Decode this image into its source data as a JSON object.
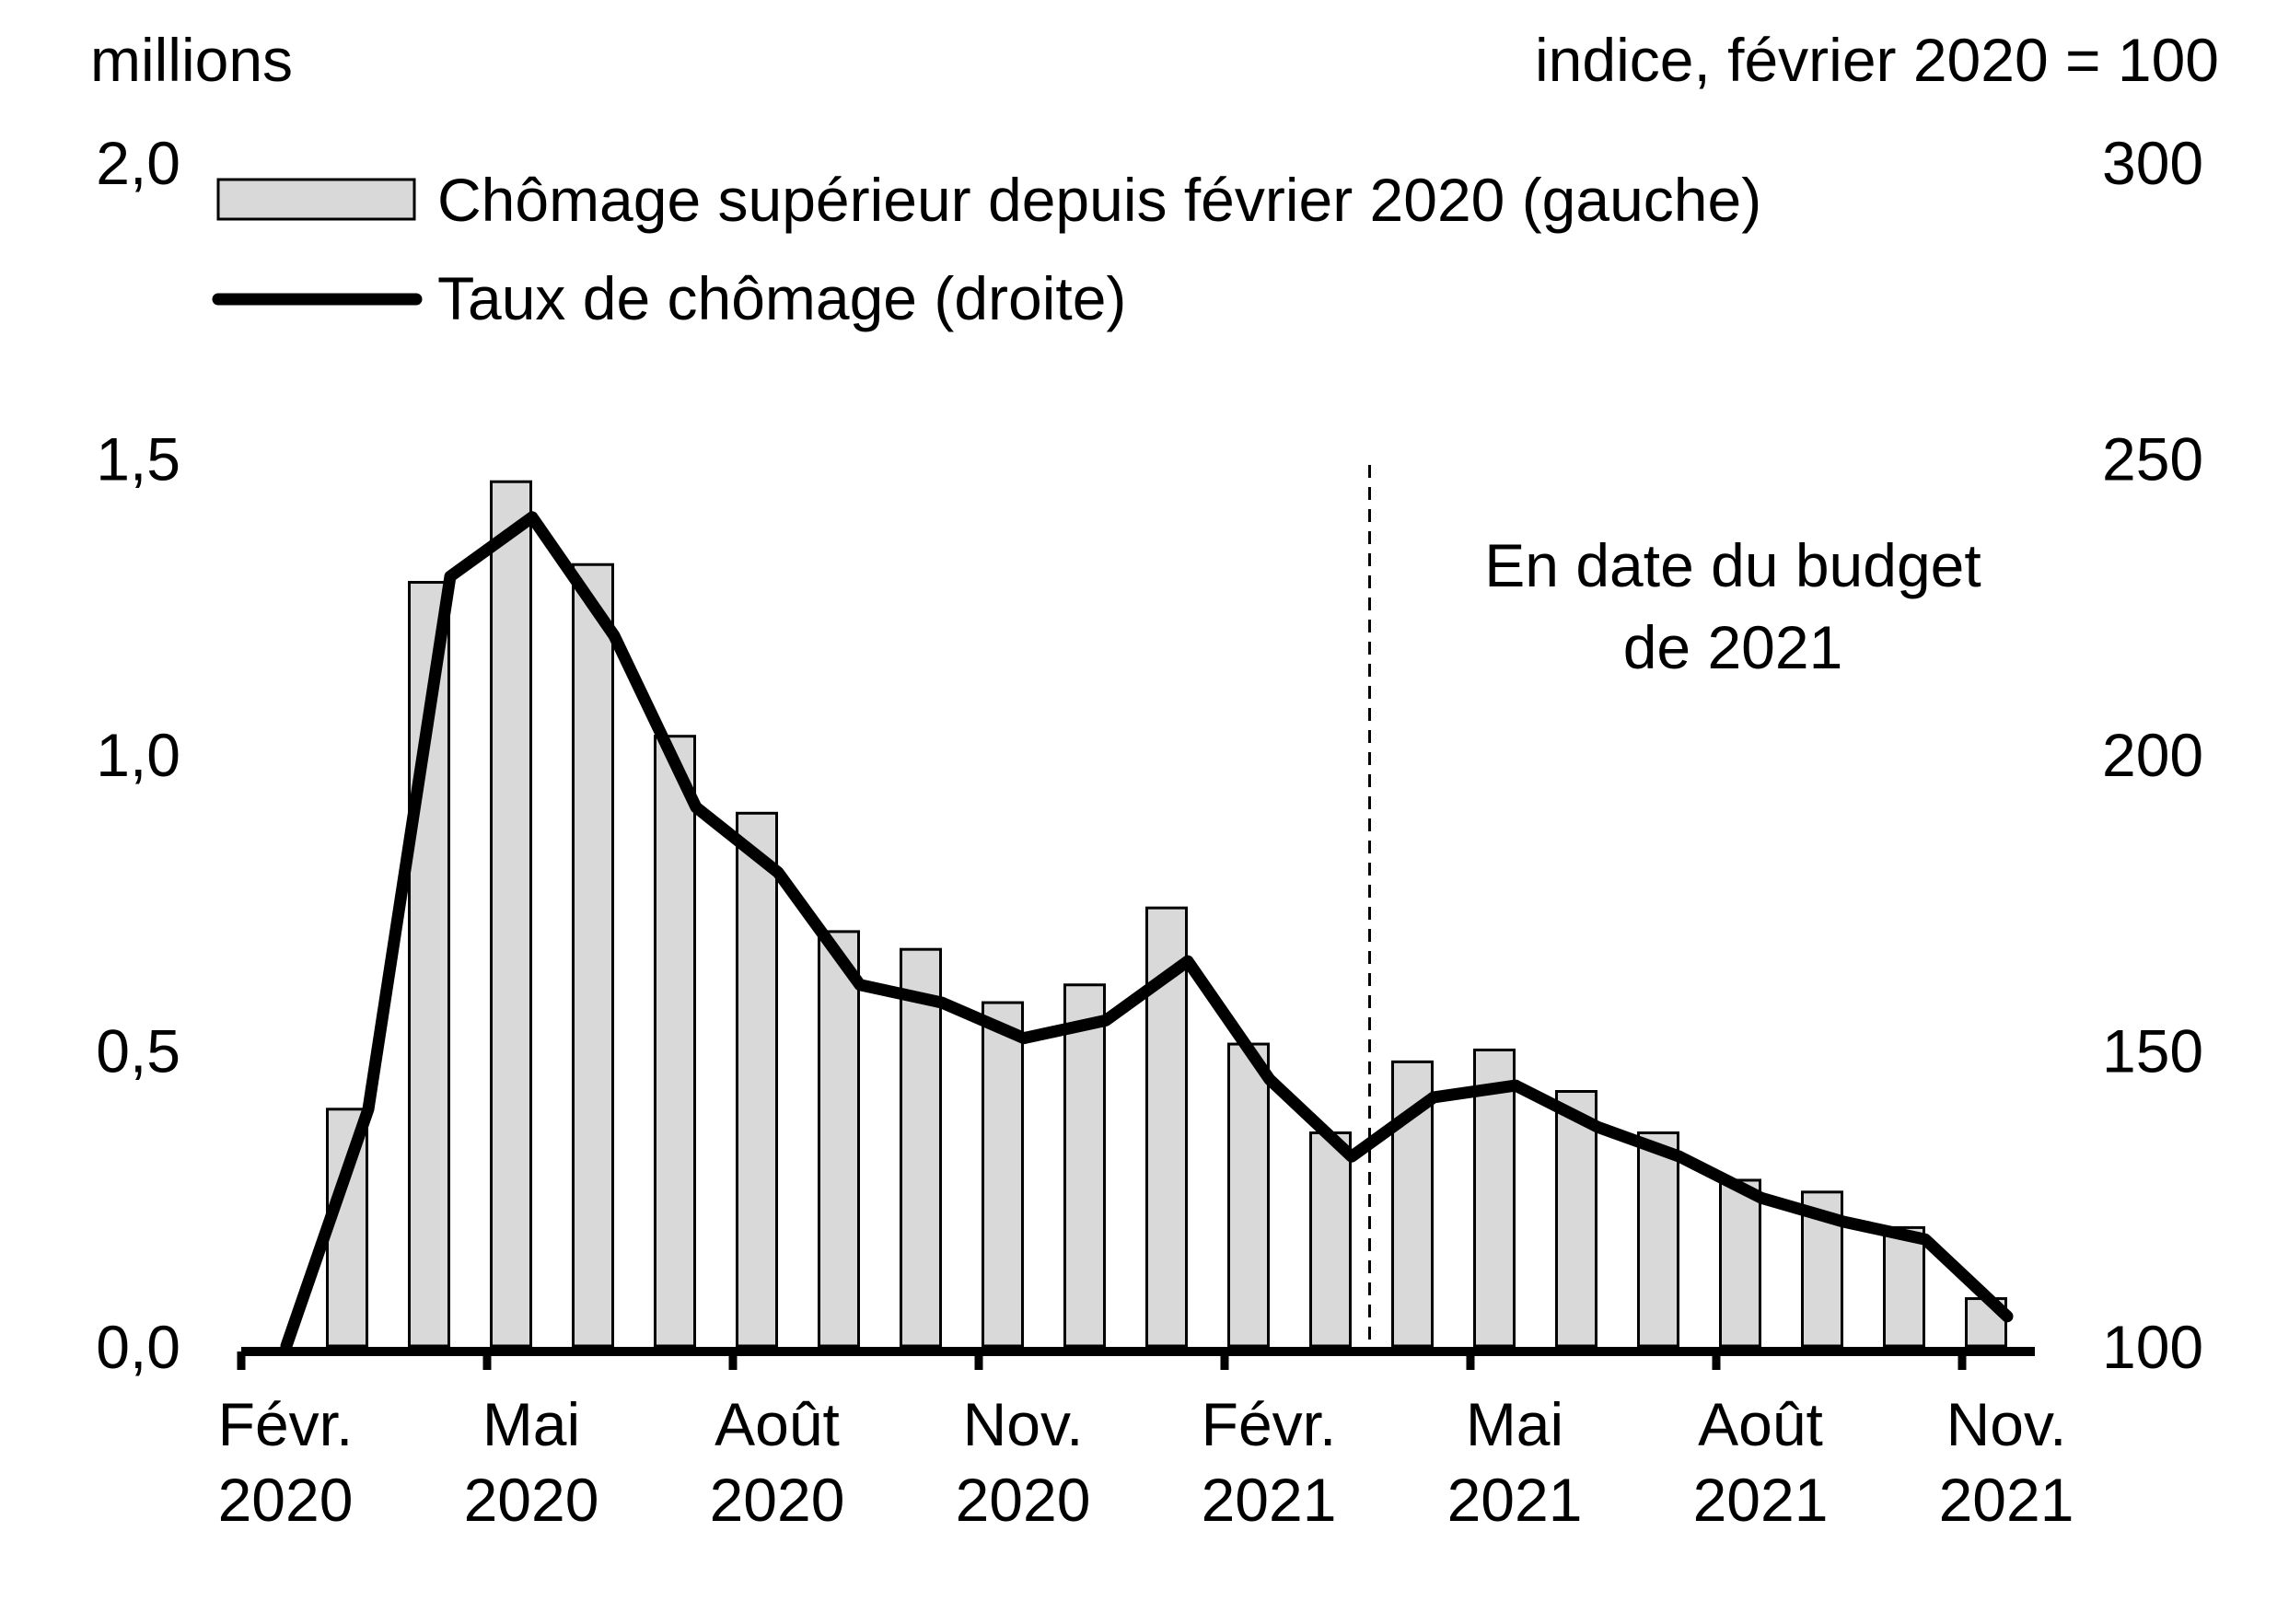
{
  "chart_data": {
    "type": "bar",
    "x": [
      "2020-03",
      "2020-04",
      "2020-05",
      "2020-06",
      "2020-07",
      "2020-08",
      "2020-09",
      "2020-10",
      "2020-11",
      "2020-12",
      "2021-01",
      "2021-02",
      "2021-03",
      "2021-04",
      "2021-05",
      "2021-06",
      "2021-07",
      "2021-08",
      "2021-09",
      "2021-10",
      "2021-11"
    ],
    "x_tick_labels": [
      {
        "date": "2020-02",
        "line1": "Févr.",
        "line2": "2020"
      },
      {
        "date": "2020-05",
        "line1": "Mai",
        "line2": "2020"
      },
      {
        "date": "2020-08",
        "line1": "Août",
        "line2": "2020"
      },
      {
        "date": "2020-11",
        "line1": "Nov.",
        "line2": "2020"
      },
      {
        "date": "2021-02",
        "line1": "Févr.",
        "line2": "2021"
      },
      {
        "date": "2021-05",
        "line1": "Mai",
        "line2": "2021"
      },
      {
        "date": "2021-08",
        "line1": "Août",
        "line2": "2021"
      },
      {
        "date": "2021-11",
        "line1": "Nov.",
        "line2": "2021"
      }
    ],
    "series": [
      {
        "name": "Chômage supérieur depuis février 2020 (gauche)",
        "type": "bar",
        "axis": "left",
        "color": "#d9d9d9",
        "values": [
          0.4,
          1.29,
          1.46,
          1.32,
          1.03,
          0.9,
          0.7,
          0.67,
          0.58,
          0.61,
          0.74,
          0.51,
          0.36,
          0.48,
          0.5,
          0.43,
          0.36,
          0.28,
          0.26,
          0.2,
          0.08
        ]
      },
      {
        "name": "Taux de chômage (droite)",
        "type": "line",
        "axis": "right",
        "color": "#000000",
        "x": [
          "2020-02",
          "2020-03",
          "2020-04",
          "2020-05",
          "2020-06",
          "2020-07",
          "2020-08",
          "2020-09",
          "2020-10",
          "2020-11",
          "2020-12",
          "2021-01",
          "2021-02",
          "2021-03",
          "2021-04",
          "2021-05",
          "2021-06",
          "2021-07",
          "2021-08",
          "2021-09",
          "2021-10",
          "2021-11"
        ],
        "values": [
          100,
          140,
          230,
          240,
          220,
          191,
          180,
          161,
          158,
          152,
          155,
          165,
          145,
          132,
          142,
          144,
          137,
          132,
          125,
          121,
          118,
          105
        ]
      }
    ],
    "left_axis": {
      "label": "millions",
      "ylim": [
        0,
        2.0
      ],
      "ticks": [
        "0,0",
        "0,5",
        "1,0",
        "1,5",
        "2,0"
      ],
      "tick_values": [
        0,
        0.5,
        1.0,
        1.5,
        2.0
      ]
    },
    "right_axis": {
      "label": "indice, février 2020 = 100",
      "ylim": [
        100,
        300
      ],
      "ticks": [
        "100",
        "150",
        "200",
        "250",
        "300"
      ],
      "tick_values": [
        100,
        150,
        200,
        250,
        300
      ]
    },
    "annotation": {
      "line1": "En date du budget",
      "line2": "de 2021",
      "divider_after": "2021-03"
    },
    "legend": "top-left",
    "grid": false
  }
}
